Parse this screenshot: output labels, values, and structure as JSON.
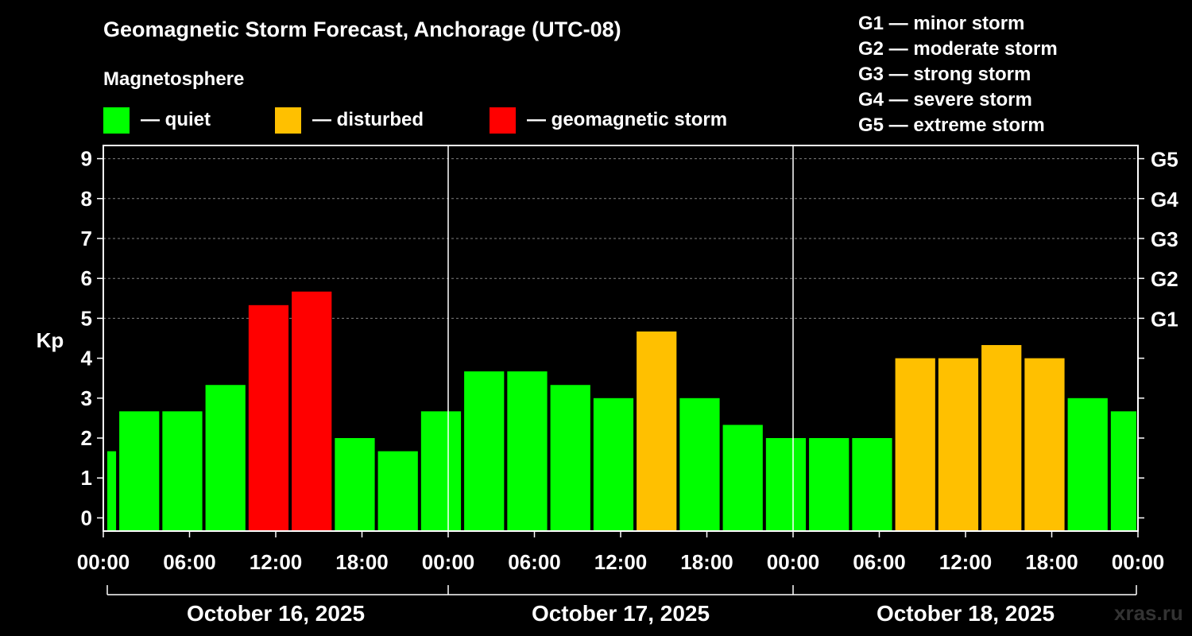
{
  "header": {
    "title": "Geomagnetic Storm Forecast, Anchorage (UTC-08)",
    "subtitle": "Magnetosphere"
  },
  "legend": {
    "items": [
      {
        "label": "— quiet",
        "color": "#00ff00"
      },
      {
        "label": "— disturbed",
        "color": "#ffc000"
      },
      {
        "label": "— geomagnetic storm",
        "color": "#ff0000"
      }
    ]
  },
  "g_legend": [
    "G1 — minor storm",
    "G2 — moderate storm",
    "G3 — strong storm",
    "G4 — severe storm",
    "G5 — extreme storm"
  ],
  "watermark": "xras.ru",
  "chart_data": {
    "type": "bar",
    "ylabel": "Kp",
    "ylim": [
      -0.33,
      9.33
    ],
    "y_ticks": [
      "0",
      "1",
      "2",
      "3",
      "4",
      "5",
      "6",
      "7",
      "8",
      "9"
    ],
    "right_axis": {
      "labels": [
        {
          "text": "G1",
          "kp": 5
        },
        {
          "text": "G2",
          "kp": 6
        },
        {
          "text": "G3",
          "kp": 7
        },
        {
          "text": "G4",
          "kp": 8
        },
        {
          "text": "G5",
          "kp": 9
        }
      ]
    },
    "grid": {
      "horizontal_dashed_from_kp": 5
    },
    "x_ticks": [
      "00:00",
      "06:00",
      "12:00",
      "18:00",
      "00:00",
      "06:00",
      "12:00",
      "18:00",
      "00:00",
      "06:00",
      "12:00",
      "18:00",
      "00:00"
    ],
    "x_range_hours": [
      0,
      72
    ],
    "days": [
      "October 16, 2025",
      "October 17, 2025",
      "October 18, 2025"
    ],
    "bars": [
      {
        "start_hour": 0,
        "end_hour": 1,
        "kp": 1.67,
        "status": "quiet"
      },
      {
        "start_hour": 1,
        "end_hour": 4,
        "kp": 2.67,
        "status": "quiet"
      },
      {
        "start_hour": 4,
        "end_hour": 7,
        "kp": 2.67,
        "status": "quiet"
      },
      {
        "start_hour": 7,
        "end_hour": 10,
        "kp": 3.33,
        "status": "quiet"
      },
      {
        "start_hour": 10,
        "end_hour": 13,
        "kp": 5.33,
        "status": "storm"
      },
      {
        "start_hour": 13,
        "end_hour": 16,
        "kp": 5.67,
        "status": "storm"
      },
      {
        "start_hour": 16,
        "end_hour": 19,
        "kp": 2.0,
        "status": "quiet"
      },
      {
        "start_hour": 19,
        "end_hour": 22,
        "kp": 1.67,
        "status": "quiet"
      },
      {
        "start_hour": 22,
        "end_hour": 25,
        "kp": 2.67,
        "status": "quiet"
      },
      {
        "start_hour": 25,
        "end_hour": 28,
        "kp": 3.67,
        "status": "quiet"
      },
      {
        "start_hour": 28,
        "end_hour": 31,
        "kp": 3.67,
        "status": "quiet"
      },
      {
        "start_hour": 31,
        "end_hour": 34,
        "kp": 3.33,
        "status": "quiet"
      },
      {
        "start_hour": 34,
        "end_hour": 37,
        "kp": 3.0,
        "status": "quiet"
      },
      {
        "start_hour": 37,
        "end_hour": 40,
        "kp": 4.67,
        "status": "disturbed"
      },
      {
        "start_hour": 40,
        "end_hour": 43,
        "kp": 3.0,
        "status": "quiet"
      },
      {
        "start_hour": 43,
        "end_hour": 46,
        "kp": 2.33,
        "status": "quiet"
      },
      {
        "start_hour": 46,
        "end_hour": 49,
        "kp": 2.0,
        "status": "quiet"
      },
      {
        "start_hour": 49,
        "end_hour": 52,
        "kp": 2.0,
        "status": "quiet"
      },
      {
        "start_hour": 52,
        "end_hour": 55,
        "kp": 2.0,
        "status": "quiet"
      },
      {
        "start_hour": 55,
        "end_hour": 58,
        "kp": 4.0,
        "status": "disturbed"
      },
      {
        "start_hour": 58,
        "end_hour": 61,
        "kp": 4.0,
        "status": "disturbed"
      },
      {
        "start_hour": 61,
        "end_hour": 64,
        "kp": 4.33,
        "status": "disturbed"
      },
      {
        "start_hour": 64,
        "end_hour": 67,
        "kp": 4.0,
        "status": "disturbed"
      },
      {
        "start_hour": 67,
        "end_hour": 70,
        "kp": 3.0,
        "status": "quiet"
      },
      {
        "start_hour": 70,
        "end_hour": 72,
        "kp": 2.67,
        "status": "quiet"
      }
    ],
    "colors": {
      "quiet": "#00ff00",
      "disturbed": "#ffc000",
      "storm": "#ff0000",
      "background": "#000000",
      "foreground": "#ffffff",
      "grid": "#808080"
    }
  }
}
